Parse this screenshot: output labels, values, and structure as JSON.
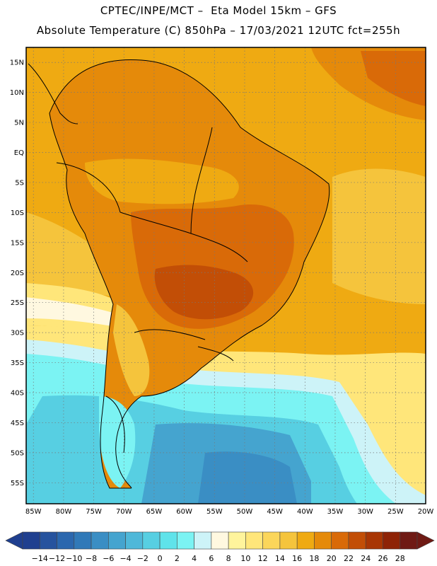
{
  "header": {
    "title_line1": "CPTEC/INPE/MCT –  Eta Model 15km – GFS",
    "title_line2": "Absolute Temperature (C) 850hPa – 17/03/2021 12UTC fct=255h"
  },
  "map": {
    "lat_ticks": [
      "15N",
      "10N",
      "5N",
      "EQ",
      "5S",
      "10S",
      "15S",
      "20S",
      "25S",
      "30S",
      "35S",
      "40S",
      "45S",
      "50S",
      "55S"
    ],
    "lon_ticks": [
      "85W",
      "80W",
      "75W",
      "70W",
      "65W",
      "60W",
      "55W",
      "50W",
      "45W",
      "40W",
      "35W",
      "30W",
      "25W",
      "20W"
    ],
    "lat_range": [
      17.5,
      -58.5
    ],
    "lon_range": [
      -86.2,
      -20
    ]
  },
  "colorbar": {
    "labels": [
      "-14",
      "-12",
      "-10",
      "-8",
      "-6",
      "-4",
      "-2",
      "0",
      "2",
      "4",
      "6",
      "8",
      "10",
      "12",
      "14",
      "16",
      "18",
      "20",
      "22",
      "24",
      "26",
      "28"
    ],
    "colors": [
      "#1f3f8f",
      "#26539e",
      "#2b67ae",
      "#3079b8",
      "#3a8ec4",
      "#45a4cf",
      "#4fb8d9",
      "#57cfe2",
      "#5fe3ea",
      "#7bf3f3",
      "#cdf3f8",
      "#fff8e0",
      "#fff49c",
      "#ffe67a",
      "#fbd65a",
      "#f5c43c",
      "#efaa12",
      "#e58a0a",
      "#d96a08",
      "#c24e06",
      "#a83604",
      "#8e2306",
      "#6f1a14"
    ]
  }
}
